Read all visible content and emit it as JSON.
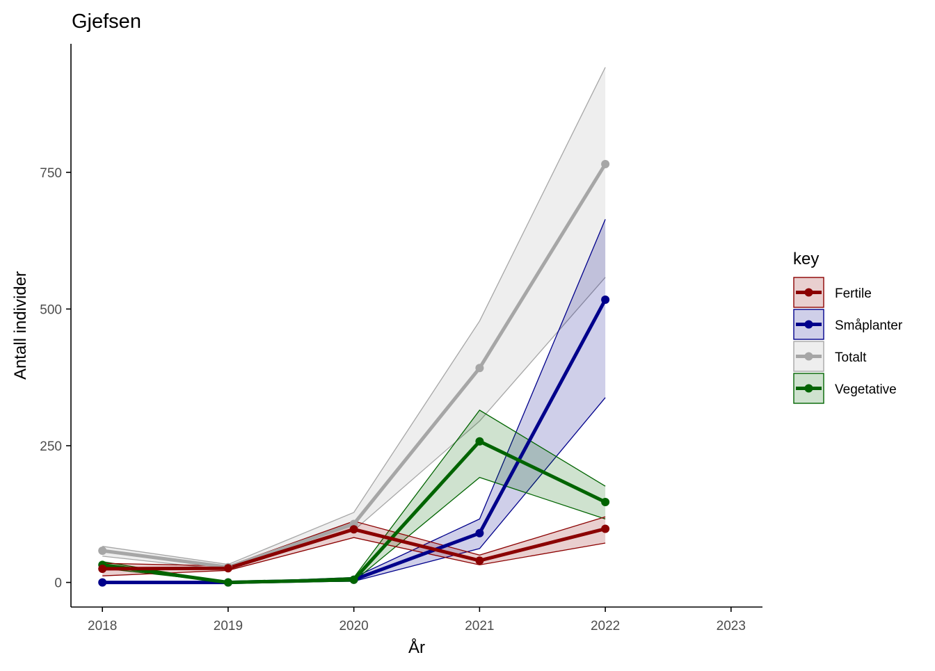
{
  "chart_data": {
    "type": "line",
    "title": "Gjefsen",
    "xlabel": "År",
    "ylabel": "Antall individer",
    "xlim": [
      2017.75,
      2023.25
    ],
    "ylim": [
      -45,
      985
    ],
    "x_ticks": [
      2018,
      2019,
      2020,
      2021,
      2022,
      2023
    ],
    "y_ticks": [
      0,
      250,
      500,
      750
    ],
    "grid": false,
    "legend": {
      "title": "key",
      "position": "right"
    },
    "series": [
      {
        "name": "Totalt",
        "color": "#a6a6a6",
        "x": [
          2018,
          2019,
          2020,
          2021,
          2022
        ],
        "y": [
          58,
          28,
          107,
          392,
          765
        ],
        "lower": [
          48,
          23,
          95,
          295,
          558
        ],
        "upper": [
          66,
          33,
          128,
          478,
          942
        ]
      },
      {
        "name": "Småplanter",
        "color": "#00008b",
        "x": [
          2018,
          2019,
          2020,
          2021,
          2022
        ],
        "y": [
          0,
          0,
          5,
          90,
          517
        ],
        "lower": [
          0,
          0,
          2,
          62,
          338
        ],
        "upper": [
          0,
          0,
          9,
          116,
          664
        ]
      },
      {
        "name": "Vegetative",
        "color": "#006400",
        "x": [
          2018,
          2019,
          2020,
          2021,
          2022
        ],
        "y": [
          32,
          0,
          5,
          258,
          147
        ],
        "lower": [
          26,
          0,
          2,
          192,
          116
        ],
        "upper": [
          38,
          0,
          9,
          315,
          176
        ]
      },
      {
        "name": "Fertile",
        "color": "#8b0000",
        "x": [
          2018,
          2019,
          2020,
          2021,
          2022
        ],
        "y": [
          25,
          26,
          97,
          40,
          98
        ],
        "lower": [
          12,
          22,
          82,
          32,
          72
        ],
        "upper": [
          35,
          30,
          112,
          50,
          120
        ]
      }
    ],
    "legend_order": [
      "Fertile",
      "Småplanter",
      "Totalt",
      "Vegetative"
    ]
  }
}
